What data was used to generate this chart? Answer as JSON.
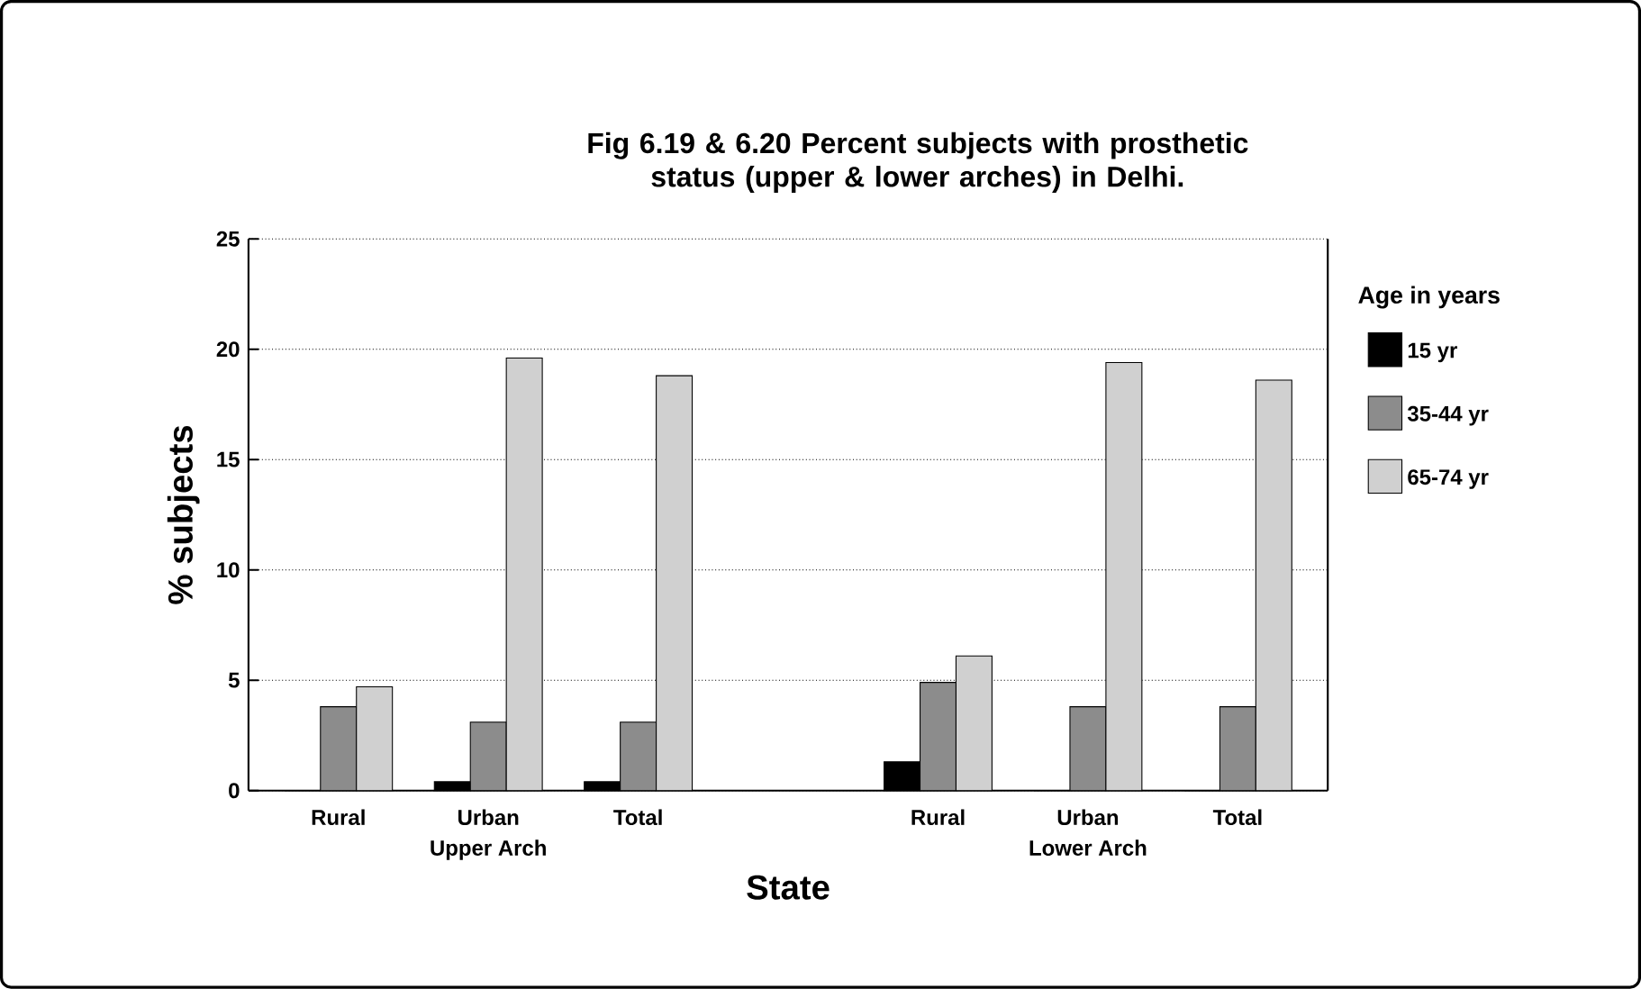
{
  "chart_data": {
    "type": "bar",
    "title": "Fig 6.19 & 6.20 Percent subjects with prosthetic status (upper & lower arches) in Delhi.",
    "xlabel": "State",
    "ylabel": "% subjects",
    "legend_title": "Age in years",
    "categories": [
      "Rural",
      "Urban",
      "Total",
      null,
      "Rural",
      "Urban",
      "Total"
    ],
    "series": [
      {
        "name": "15 yr",
        "color": "#000000",
        "values": [
          0,
          0.4,
          0.4,
          null,
          1.3,
          0,
          0
        ]
      },
      {
        "name": "35-44 yr",
        "color": "#8c8c8c",
        "values": [
          3.8,
          3.1,
          3.1,
          null,
          4.9,
          3.8,
          3.8
        ]
      },
      {
        "name": "65-74 yr",
        "color": "#d0d0d0",
        "values": [
          4.7,
          19.6,
          18.8,
          null,
          6.1,
          19.4,
          18.6
        ]
      }
    ],
    "annotations": [
      "Upper Arch",
      "Lower Arch"
    ],
    "ylim": [
      0,
      25
    ],
    "yticks": [
      0,
      5,
      10,
      15,
      20,
      25
    ],
    "grid": "y",
    "legend": "right"
  }
}
